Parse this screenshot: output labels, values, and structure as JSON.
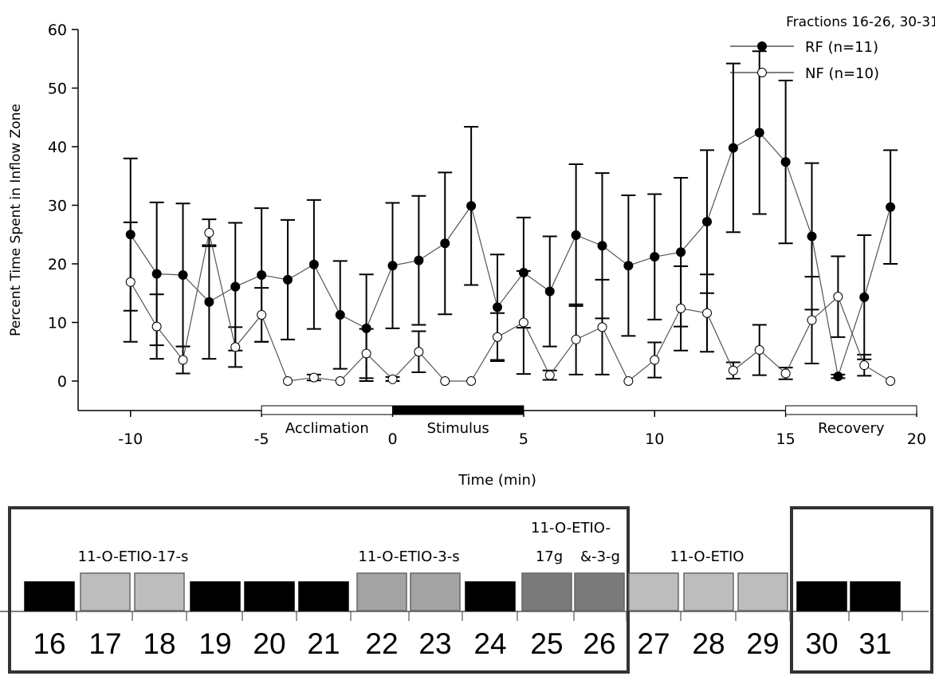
{
  "chart_data": {
    "type": "line",
    "title": "",
    "legend_title": "Fractions 16-26, 30-31",
    "legend_position": "top-right",
    "xlabel": "Time (min)",
    "ylabel": "Percent Time Spent in Inflow Zone",
    "xlim": [
      -12,
      20
    ],
    "ylim": [
      0,
      60
    ],
    "xticks": [
      -10,
      -5,
      0,
      5,
      10,
      15,
      20
    ],
    "yticks": [
      0,
      10,
      20,
      30,
      40,
      50,
      60
    ],
    "grid": false,
    "x": [
      -10,
      -9,
      -8,
      -7,
      -6,
      -5,
      -4,
      -3,
      -2,
      -1,
      0,
      1,
      2,
      3,
      4,
      5,
      6,
      7,
      8,
      9,
      10,
      11,
      12,
      13,
      14,
      15,
      16,
      17,
      18,
      19
    ],
    "series": [
      {
        "name": "RF (n=11)",
        "marker": "filled-circle",
        "color": "#000000",
        "values": [
          25,
          18.3,
          18.1,
          13.5,
          16.1,
          18.1,
          17.3,
          19.9,
          11.3,
          9.0,
          19.7,
          20.6,
          23.5,
          29.9,
          12.6,
          18.5,
          15.3,
          24.9,
          23.1,
          19.7,
          21.2,
          22.0,
          27.2,
          39.8,
          42.4,
          37.4,
          24.7,
          0.8,
          14.3,
          29.7
        ],
        "error": [
          13,
          12.2,
          12.2,
          9.7,
          10.9,
          11.4,
          10.2,
          11.0,
          9.2,
          9.2,
          10.7,
          11.0,
          12.1,
          13.5,
          9.0,
          9.4,
          9.4,
          12.1,
          12.4,
          12.0,
          10.7,
          12.7,
          12.2,
          14.4,
          13.9,
          13.9,
          12.5,
          0.3,
          10.6,
          9.7
        ]
      },
      {
        "name": "NF (n=10)",
        "marker": "open-circle",
        "color": "#000000",
        "values": [
          16.9,
          9.3,
          3.6,
          25.3,
          5.8,
          11.3,
          0.0,
          0.6,
          0.0,
          4.7,
          0.3,
          5.0,
          0.0,
          0.0,
          7.5,
          10.0,
          1.0,
          7.1,
          9.2,
          0.0,
          3.6,
          12.4,
          11.6,
          1.8,
          5.3,
          1.3,
          10.4,
          14.4,
          2.7,
          0.0
        ],
        "error": [
          10.2,
          5.5,
          2.3,
          2.3,
          3.4,
          4.6,
          0.0,
          0.5,
          0.0,
          4.2,
          0.4,
          3.5,
          0.0,
          0.0,
          4.1,
          8.8,
          0.8,
          6.0,
          8.1,
          0.0,
          3.0,
          7.2,
          6.6,
          1.4,
          4.3,
          1.0,
          7.4,
          6.9,
          1.8,
          0.0
        ]
      }
    ],
    "phases": [
      {
        "label": "Acclimation",
        "start": -5,
        "end": 0,
        "fill": "#ffffff"
      },
      {
        "label": "Stimulus",
        "start": 0,
        "end": 5,
        "fill": "#000000"
      },
      {
        "label": "Recovery",
        "start": 15,
        "end": 20,
        "fill": "#ffffff"
      }
    ]
  },
  "fractions": {
    "numbers": [
      "16",
      "17",
      "18",
      "19",
      "20",
      "21",
      "22",
      "23",
      "24",
      "25",
      "26",
      "27",
      "28",
      "29",
      "30",
      "31"
    ],
    "shades": [
      "#000000",
      "#bdbdbd",
      "#bdbdbd",
      "#000000",
      "#000000",
      "#000000",
      "#a3a3a3",
      "#a3a3a3",
      "#000000",
      "#7a7a7a",
      "#7a7a7a",
      "#bdbdbd",
      "#bdbdbd",
      "#bdbdbd",
      "#000000",
      "#000000"
    ],
    "labels": [
      {
        "text": "11-O-ETIO-17-s"
      },
      {
        "text": "11-O-ETIO-3-s"
      },
      {
        "text": "11-O-ETIO-"
      },
      {
        "text": "17g"
      },
      {
        "text": "&-3-g"
      },
      {
        "text": "11-O-ETIO"
      }
    ]
  }
}
